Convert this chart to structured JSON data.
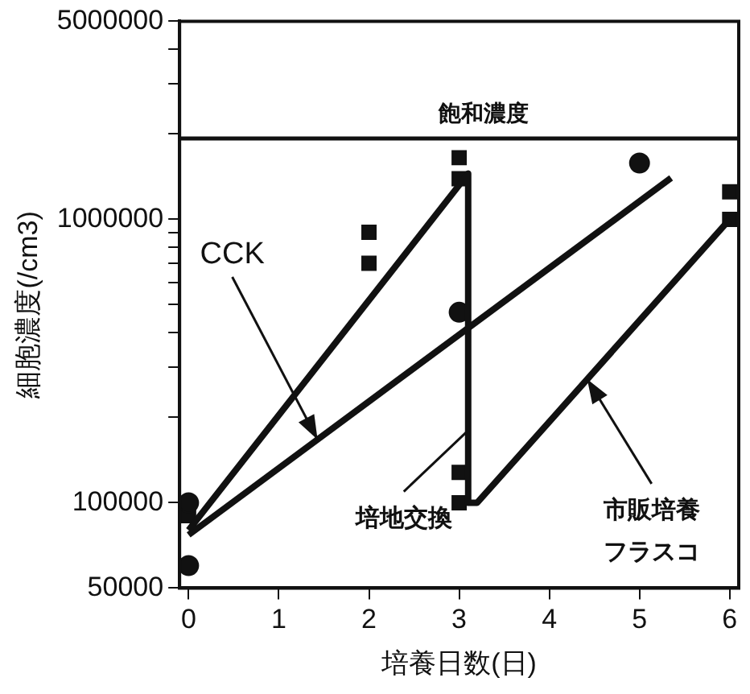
{
  "chart_data": {
    "type": "scatter",
    "xlabel": "培養日数(日)",
    "ylabel": "細胞濃度(/cm3)",
    "log": "y",
    "xlim": [
      -0.1,
      6.1
    ],
    "xticks": [
      0,
      1,
      2,
      3,
      4,
      5,
      6
    ],
    "ylim": [
      50000,
      5000000
    ],
    "yticks": [
      50000,
      100000,
      {
        "value": 200000,
        "label": null
      },
      {
        "value": 300000,
        "label": null
      },
      {
        "value": 400000,
        "label": null
      },
      {
        "value": 500000,
        "label": null
      },
      {
        "value": 600000,
        "label": null
      },
      {
        "value": 700000,
        "label": null
      },
      {
        "value": 800000,
        "label": null
      },
      {
        "value": 900000,
        "label": null
      },
      1000000,
      {
        "value": 2000000,
        "label": null
      },
      {
        "value": 3000000,
        "label": null
      },
      {
        "value": 4000000,
        "label": null
      },
      5000000
    ],
    "grid": false,
    "legend": false,
    "series": [
      {
        "type": "line",
        "color": "#111111",
        "x": [
          0,
          3.1,
          3.1,
          3.2,
          6
        ],
        "values": [
          80000,
          1450000,
          100000,
          100000,
          1000000
        ],
        "marker": "none"
      },
      {
        "type": "line",
        "color": "#111111",
        "x": [
          0,
          5.35
        ],
        "values": [
          77000,
          1400000
        ],
        "marker": "none"
      },
      {
        "type": "scatter",
        "color": "#111111",
        "marker": "circle",
        "x": [
          0,
          0,
          3,
          5
        ],
        "values": [
          100000,
          60000,
          470000,
          1580000
        ]
      },
      {
        "type": "scatter",
        "color": "#111111",
        "marker": "square",
        "x": [
          0,
          2,
          2,
          3,
          3,
          3,
          3,
          6,
          6
        ],
        "values": [
          90000,
          900000,
          700000,
          1650000,
          1390000,
          128000,
          100000,
          1250000,
          1000000
        ]
      }
    ],
    "ref_lines": [
      {
        "axis": "y",
        "value": 1930000,
        "label": "飽和濃度",
        "color": "#111111"
      }
    ],
    "annotations": [
      {
        "text": "CCK",
        "x": 1.43,
        "y": 167000
      },
      {
        "text": "培地交換",
        "x": 3.1,
        "y": 180000
      },
      {
        "text": "市販培養フラスコ",
        "x": 4.42,
        "y": 273000
      }
    ]
  }
}
